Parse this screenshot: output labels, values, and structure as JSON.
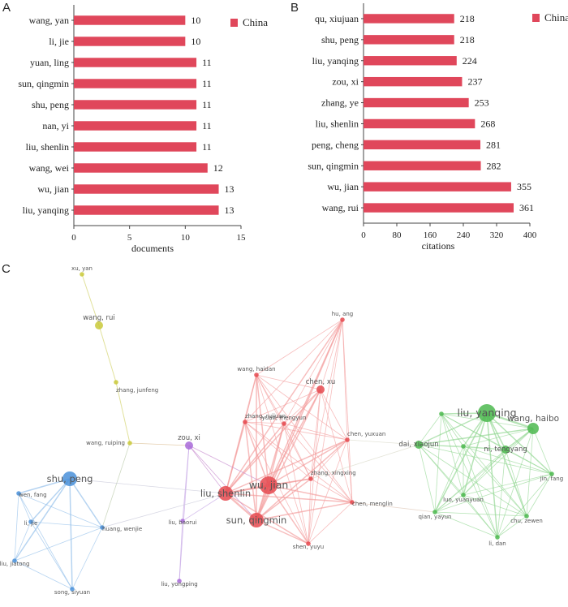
{
  "chart_data": [
    {
      "panel": "A",
      "type": "bar",
      "orientation": "horizontal",
      "categories": [
        "wang, yan",
        "li, jie",
        "yuan, ling",
        "sun, qingmin",
        "shu, peng",
        "nan, yi",
        "liu, shenlin",
        "wang, wei",
        "wu, jian",
        "liu, yanqing"
      ],
      "series": [
        {
          "name": "China",
          "values": [
            10,
            10,
            11,
            11,
            11,
            11,
            11,
            12,
            13,
            13
          ]
        }
      ],
      "xlabel": "documents",
      "xticks": [
        0,
        5,
        10,
        15
      ],
      "xlim": [
        0,
        15
      ],
      "legend": "top-right",
      "color": "#e0475b"
    },
    {
      "panel": "B",
      "type": "bar",
      "orientation": "horizontal",
      "categories": [
        "qu, xiujuan",
        "shu, peng",
        "liu, yanqing",
        "zou, xi",
        "zhang, ye",
        "liu, shenlin",
        "peng, cheng",
        "sun, qingmin",
        "wu, jian",
        "wang, rui"
      ],
      "series": [
        {
          "name": "China",
          "values": [
            218,
            218,
            224,
            237,
            253,
            268,
            281,
            282,
            355,
            361
          ]
        }
      ],
      "xlabel": "citations",
      "xticks": [
        0,
        80,
        160,
        240,
        320,
        400
      ],
      "xlim": [
        0,
        400
      ],
      "legend": "top-right",
      "color": "#e0475b"
    }
  ],
  "network": {
    "panel": "C",
    "clusters": [
      {
        "id": "red",
        "color": "#e5494f",
        "edge_color": "#f29a9a"
      },
      {
        "id": "green",
        "color": "#4cb84f",
        "edge_color": "#8fd68f"
      },
      {
        "id": "blue",
        "color": "#4a90d9",
        "edge_color": "#8fbdea"
      },
      {
        "id": "yellow",
        "color": "#c9c93a",
        "edge_color": "#dada82"
      },
      {
        "id": "purple",
        "color": "#a86ad8",
        "edge_color": "#c6a6e6"
      }
    ],
    "nodes": [
      {
        "id": "xu, yan",
        "cluster": "yellow",
        "size": 1
      },
      {
        "id": "wang, rui",
        "cluster": "yellow",
        "size": 2
      },
      {
        "id": "zhang, junfeng",
        "cluster": "yellow",
        "size": 1
      },
      {
        "id": "wang, ruiping",
        "cluster": "yellow",
        "size": 1
      },
      {
        "id": "hu, ang",
        "cluster": "red",
        "size": 1
      },
      {
        "id": "wang, haidan",
        "cluster": "red",
        "size": 1
      },
      {
        "id": "chen, xu",
        "cluster": "red",
        "size": 2
      },
      {
        "id": "zhang, ruijuan",
        "cluster": "red",
        "size": 1
      },
      {
        "id": "yuan, mengyun",
        "cluster": "red",
        "size": 1
      },
      {
        "id": "chen, yuxuan",
        "cluster": "red",
        "size": 1
      },
      {
        "id": "liu, shenlin",
        "cluster": "red",
        "size": 4
      },
      {
        "id": "wu, jian",
        "cluster": "red",
        "size": 5
      },
      {
        "id": "zhang, xingxing",
        "cluster": "red",
        "size": 1
      },
      {
        "id": "chen, menglin",
        "cluster": "red",
        "size": 1
      },
      {
        "id": "sun, qingmin",
        "cluster": "red",
        "size": 4
      },
      {
        "id": "shen, yuyu",
        "cluster": "red",
        "size": 1
      },
      {
        "id": "zou, xi",
        "cluster": "purple",
        "size": 2
      },
      {
        "id": "liu, baorui",
        "cluster": "purple",
        "size": 1
      },
      {
        "id": "liu, yongping",
        "cluster": "purple",
        "size": 1
      },
      {
        "id": "shu, peng",
        "cluster": "blue",
        "size": 4
      },
      {
        "id": "wen, fang",
        "cluster": "blue",
        "size": 1
      },
      {
        "id": "li, jie",
        "cluster": "blue",
        "size": 1
      },
      {
        "id": "huang, wenjie",
        "cluster": "blue",
        "size": 1
      },
      {
        "id": "liu, jiatong",
        "cluster": "blue",
        "size": 1
      },
      {
        "id": "song, siyuan",
        "cluster": "blue",
        "size": 1
      },
      {
        "id": "liu, yanqing",
        "cluster": "green",
        "size": 5
      },
      {
        "id": "wang, haibo",
        "cluster": "green",
        "size": 3
      },
      {
        "id": "dai, xiaojun",
        "cluster": "green",
        "size": 2
      },
      {
        "id": "ni, tengyang",
        "cluster": "green",
        "size": 2
      },
      {
        "id": "jin, fang",
        "cluster": "green",
        "size": 1
      },
      {
        "id": "luo, yuanyuan",
        "cluster": "green",
        "size": 1
      },
      {
        "id": "qian, yayun",
        "cluster": "green",
        "size": 1
      },
      {
        "id": "chu, zewen",
        "cluster": "green",
        "size": 1
      },
      {
        "id": "li, dan",
        "cluster": "green",
        "size": 1
      },
      {
        "id": "",
        "cluster": "green",
        "size": 1
      },
      {
        "id": "",
        "cluster": "green",
        "size": 1
      }
    ]
  }
}
